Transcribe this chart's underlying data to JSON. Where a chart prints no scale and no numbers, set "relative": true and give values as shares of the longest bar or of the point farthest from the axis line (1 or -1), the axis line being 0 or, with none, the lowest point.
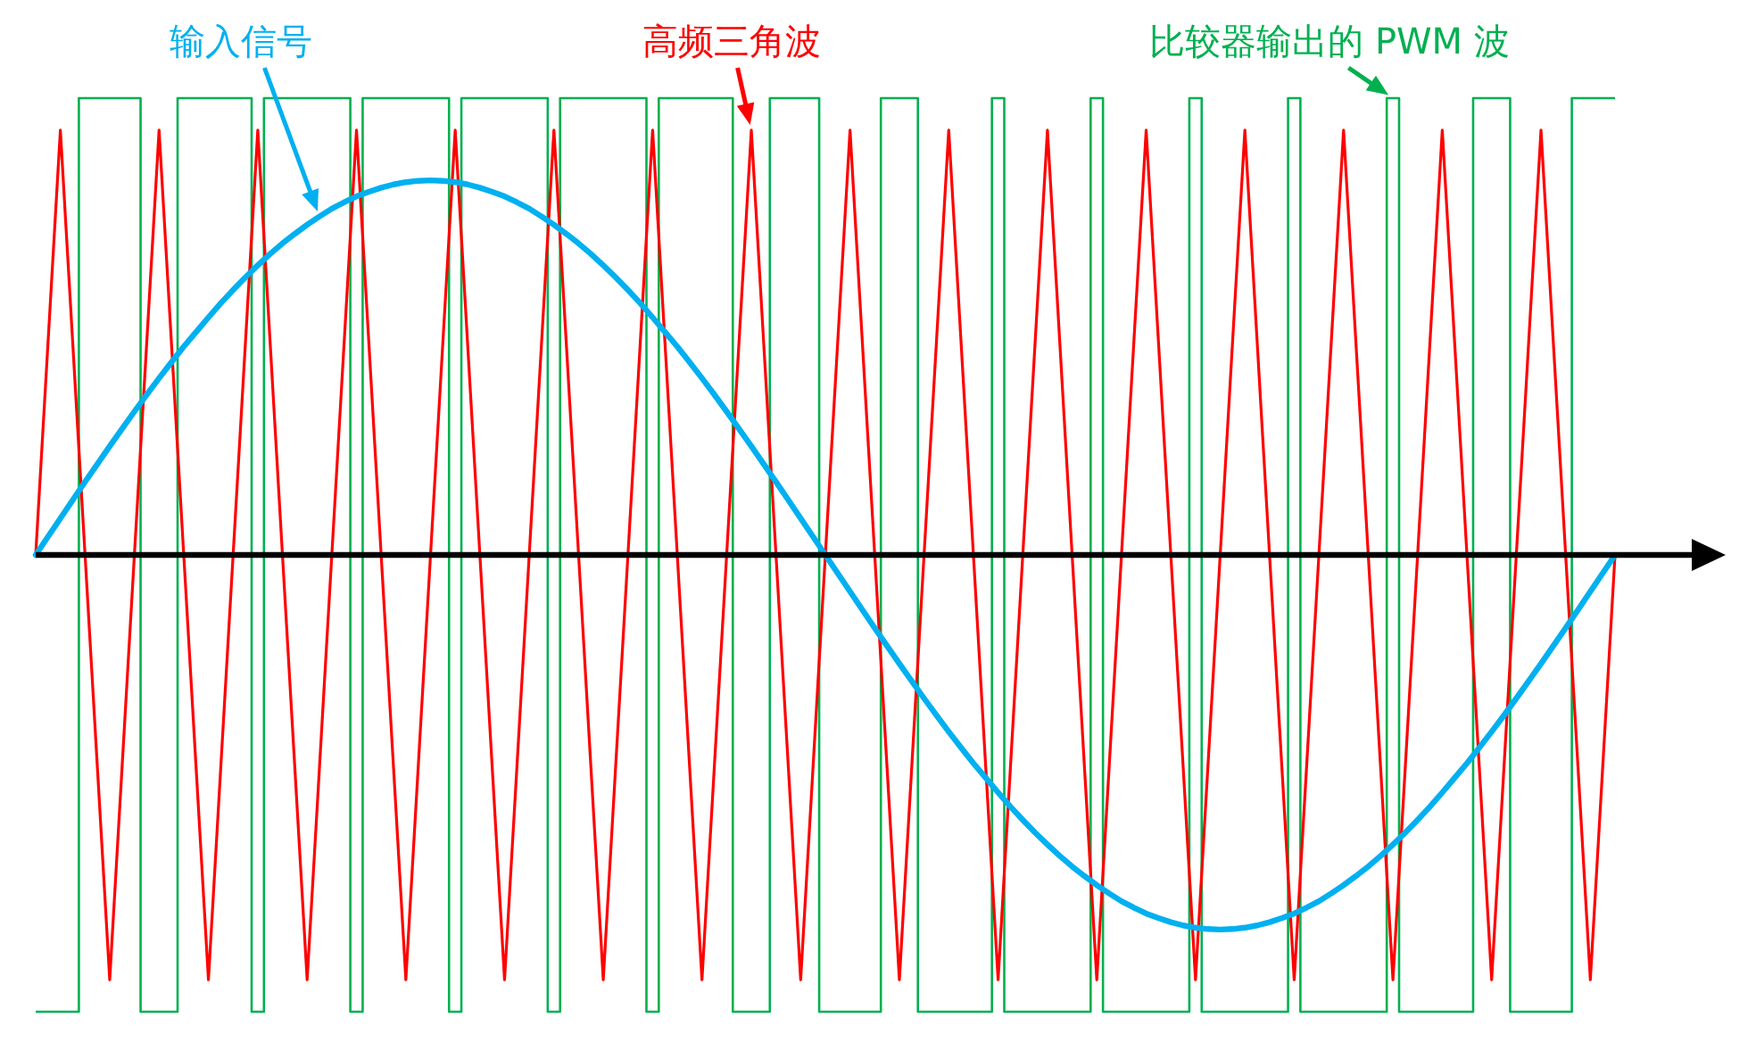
{
  "chart_data": {
    "type": "line",
    "relative": true,
    "categories": [
      null,
      null,
      null,
      null,
      null,
      null,
      null,
      null,
      null,
      null,
      null,
      null,
      null,
      null,
      null,
      null,
      null,
      null,
      null,
      null,
      null,
      null,
      null,
      null,
      null,
      null,
      null,
      null,
      null,
      null,
      null,
      null,
      null,
      null,
      null,
      null,
      null,
      null,
      null,
      null,
      null,
      null,
      null,
      null,
      null,
      null,
      null,
      null,
      null,
      null,
      null,
      null,
      null,
      null,
      null,
      null,
      null,
      null,
      null,
      null,
      null,
      null,
      null,
      null,
      null,
      null,
      null,
      null,
      null,
      null,
      null,
      null,
      null,
      null,
      null,
      null,
      null,
      null,
      null,
      null,
      null,
      null,
      null,
      null,
      null,
      null,
      null,
      null,
      null,
      null,
      null,
      null,
      null,
      null,
      null,
      null,
      null,
      null,
      null,
      null,
      null,
      null,
      null,
      null,
      null,
      null,
      null,
      null,
      null,
      null,
      null,
      null,
      null,
      null,
      null,
      null,
      null,
      null,
      null,
      null,
      null,
      null,
      null,
      null,
      null,
      null,
      null,
      null,
      null
    ],
    "series": [
      {
        "name": "输入信号",
        "color": "#00b0f0",
        "values": [
          0,
          0.04,
          0.08,
          0.12,
          0.16,
          0.199,
          0.238,
          0.276,
          0.314,
          0.351,
          0.387,
          0.422,
          0.456,
          0.488,
          0.52,
          0.551,
          0.58,
          0.608,
          0.634,
          0.659,
          0.682,
          0.703,
          0.723,
          0.741,
          0.758,
          0.772,
          0.785,
          0.795,
          0.804,
          0.811,
          0.816,
          0.819,
          0.82,
          0.819,
          0.816,
          0.811,
          0.804,
          0.795,
          0.785,
          0.772,
          0.758,
          0.741,
          0.723,
          0.703,
          0.682,
          0.659,
          0.634,
          0.608,
          0.58,
          0.551,
          0.52,
          0.488,
          0.456,
          0.422,
          0.387,
          0.351,
          0.314,
          0.276,
          0.238,
          0.199,
          0.16,
          0.12,
          0.08,
          0.04,
          0,
          -0.04,
          -0.08,
          -0.12,
          -0.16,
          -0.199,
          -0.238,
          -0.276,
          -0.314,
          -0.351,
          -0.387,
          -0.422,
          -0.456,
          -0.488,
          -0.52,
          -0.551,
          -0.58,
          -0.608,
          -0.634,
          -0.659,
          -0.682,
          -0.703,
          -0.723,
          -0.741,
          -0.758,
          -0.772,
          -0.785,
          -0.795,
          -0.804,
          -0.811,
          -0.816,
          -0.819,
          -0.82,
          -0.819,
          -0.816,
          -0.811,
          -0.804,
          -0.795,
          -0.785,
          -0.772,
          -0.758,
          -0.741,
          -0.723,
          -0.703,
          -0.682,
          -0.659,
          -0.634,
          -0.608,
          -0.58,
          -0.551,
          -0.52,
          -0.488,
          -0.456,
          -0.422,
          -0.387,
          -0.351,
          -0.314,
          -0.276,
          -0.238,
          -0.199,
          -0.16,
          -0.12,
          -0.08,
          -0.04,
          0
        ]
      },
      {
        "name": "高频三角波",
        "color": "#ff0000",
        "values": [
          0,
          0.465,
          0.93,
          0.465,
          0,
          -0.465,
          -0.93,
          -0.465,
          0,
          0.465,
          0.93,
          0.465,
          0,
          -0.465,
          -0.93,
          -0.465,
          0,
          0.465,
          0.93,
          0.465,
          0,
          -0.465,
          -0.93,
          -0.465,
          0,
          0.465,
          0.93,
          0.465,
          0,
          -0.465,
          -0.93,
          -0.465,
          0,
          0.465,
          0.93,
          0.465,
          0,
          -0.465,
          -0.93,
          -0.465,
          0,
          0.465,
          0.93,
          0.465,
          0,
          -0.465,
          -0.93,
          -0.465,
          0,
          0.465,
          0.93,
          0.465,
          0,
          -0.465,
          -0.93,
          -0.465,
          0,
          0.465,
          0.93,
          0.465,
          0,
          -0.465,
          -0.93,
          -0.465,
          0,
          0.465,
          0.93,
          0.465,
          0,
          -0.465,
          -0.93,
          -0.465,
          0,
          0.465,
          0.93,
          0.465,
          0,
          -0.465,
          -0.93,
          -0.465,
          0,
          0.465,
          0.93,
          0.465,
          0,
          -0.465,
          -0.93,
          -0.465,
          0,
          0.465,
          0.93,
          0.465,
          0,
          -0.465,
          -0.93,
          -0.465,
          0,
          0.465,
          0.93,
          0.465,
          0,
          -0.465,
          -0.93,
          -0.465,
          0,
          0.465,
          0.93,
          0.465,
          0,
          -0.465,
          -0.93,
          -0.465,
          0,
          0.465,
          0.93,
          0.465,
          0,
          -0.465,
          -0.93,
          -0.465,
          0,
          0.465,
          0.93,
          0.465,
          0,
          -0.465,
          -0.93,
          -0.465,
          0
        ]
      },
      {
        "name": "比较器输出的 PWM 波",
        "type": "step",
        "color": "#00b050",
        "values": [
          -1,
          -1,
          -1,
          -1,
          1,
          1,
          1,
          1,
          1,
          -1,
          -1,
          -1,
          1,
          1,
          1,
          1,
          1,
          1,
          -1,
          1,
          1,
          1,
          1,
          1,
          1,
          1,
          -1,
          1,
          1,
          1,
          1,
          1,
          1,
          1,
          -1,
          1,
          1,
          1,
          1,
          1,
          1,
          1,
          -1,
          1,
          1,
          1,
          1,
          1,
          1,
          1,
          -1,
          1,
          1,
          1,
          1,
          1,
          1,
          -1,
          -1,
          -1,
          1,
          1,
          1,
          1,
          -1,
          -1,
          -1,
          -1,
          -1,
          1,
          1,
          1,
          -1,
          -1,
          -1,
          -1,
          -1,
          -1,
          1,
          -1,
          -1,
          -1,
          -1,
          -1,
          -1,
          -1,
          1,
          -1,
          -1,
          -1,
          -1,
          -1,
          -1,
          -1,
          1,
          -1,
          -1,
          -1,
          -1,
          -1,
          -1,
          -1,
          1,
          -1,
          -1,
          -1,
          -1,
          -1,
          -1,
          -1,
          1,
          -1,
          -1,
          -1,
          -1,
          -1,
          -1,
          1,
          1,
          1,
          -1,
          -1,
          -1,
          -1,
          -1,
          1,
          1,
          1,
          1
        ]
      }
    ]
  }
}
